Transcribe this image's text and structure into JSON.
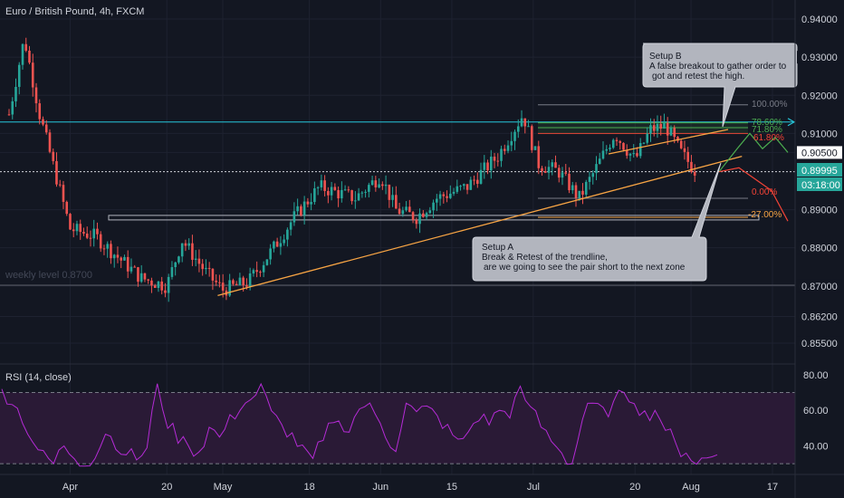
{
  "header": {
    "symbol_title": "Euro / British Pound, 4h, FXCM",
    "rsi_label": "RSI (14, close)"
  },
  "colors": {
    "background": "#131722",
    "grid": "#1e2230",
    "up": "#26a69a",
    "down": "#ef5350",
    "trendline": "#f7a444",
    "cyan_level": "#26c6da",
    "rsi_line": "#b52bd6",
    "rsi_fill": "#2a1a36",
    "projection_green": "#4caf50",
    "projection_red": "#f44336",
    "callout_bg": "#b2b5be"
  },
  "price_axis": {
    "ticks": [
      {
        "label": "0.94000",
        "value": 0.94
      },
      {
        "label": "0.93000",
        "value": 0.93
      },
      {
        "label": "0.92000",
        "value": 0.92
      },
      {
        "label": "0.91000",
        "value": 0.91
      },
      {
        "label": "0.90500",
        "value": 0.905
      },
      {
        "label": "0.89000",
        "value": 0.89
      },
      {
        "label": "0.88000",
        "value": 0.88
      },
      {
        "label": "0.87000",
        "value": 0.87
      },
      {
        "label": "0.86200",
        "value": 0.862
      },
      {
        "label": "0.85500",
        "value": 0.855
      }
    ],
    "current_price": "0.89995",
    "countdown": "03:18:00"
  },
  "rsi_axis": {
    "ticks": [
      {
        "label": "80.00",
        "value": 80
      },
      {
        "label": "60.00",
        "value": 60
      },
      {
        "label": "40.00",
        "value": 40
      }
    ],
    "upper_band": 70,
    "lower_band": 30
  },
  "time_axis": {
    "ticks": [
      "Apr",
      "20",
      "May",
      "18",
      "Jun",
      "15",
      "Jul",
      "20",
      "Aug",
      "17"
    ]
  },
  "annotations": {
    "weekly_level": "weekly level 0.8700",
    "setup_b": {
      "title": "Setup B",
      "line1": "A false breakout to gather order to",
      "line2": "got and retest the high."
    },
    "setup_a": {
      "title": "Setup A",
      "line1": "Break & Retest of the trendline,",
      "line2": "are we going to see the pair short to the next zone"
    },
    "fib_levels": [
      {
        "label": "100.00%",
        "color": "#787b86"
      },
      {
        "label": "78.60%",
        "color": "#4caf50"
      },
      {
        "label": "71.80%",
        "color": "#4caf50"
      },
      {
        "label": "61.80%",
        "color": "#f44336"
      },
      {
        "label": "0.00%",
        "color": "#787b86"
      },
      {
        "label": "-27.00%",
        "color": "#787b86"
      }
    ]
  },
  "chart_data": {
    "type": "candlestick",
    "title": "Euro / British Pound, 4h, FXCM",
    "x_ticks": [
      "Apr",
      "20",
      "May",
      "18",
      "Jun",
      "15",
      "Jul",
      "20",
      "Aug",
      "17"
    ],
    "ylim": [
      0.85,
      0.945
    ],
    "last_price": 0.89995,
    "horizontal_levels": [
      {
        "name": "weekly level",
        "value": 0.87
      },
      {
        "name": "cyan level",
        "value": 0.913
      },
      {
        "name": "zone",
        "value": 0.8875
      }
    ],
    "price_path": [
      {
        "x": "Mar 20",
        "close": 0.915
      },
      {
        "x": "Mar 23",
        "close": 0.935
      },
      {
        "x": "Mar 26",
        "close": 0.915
      },
      {
        "x": "Apr 1",
        "close": 0.885
      },
      {
        "x": "Apr 6",
        "close": 0.883
      },
      {
        "x": "Apr 10",
        "close": 0.878
      },
      {
        "x": "Apr 15",
        "close": 0.872
      },
      {
        "x": "Apr 20",
        "close": 0.87
      },
      {
        "x": "Apr 23",
        "close": 0.882
      },
      {
        "x": "Apr 28",
        "close": 0.873
      },
      {
        "x": "May 1",
        "close": 0.869
      },
      {
        "x": "May 6",
        "close": 0.871
      },
      {
        "x": "May 11",
        "close": 0.88
      },
      {
        "x": "May 15",
        "close": 0.888
      },
      {
        "x": "May 20",
        "close": 0.896
      },
      {
        "x": "May 27",
        "close": 0.893
      },
      {
        "x": "Jun 1",
        "close": 0.899
      },
      {
        "x": "Jun 4",
        "close": 0.89
      },
      {
        "x": "Jun 8",
        "close": 0.888
      },
      {
        "x": "Jun 12",
        "close": 0.893
      },
      {
        "x": "Jun 18",
        "close": 0.896
      },
      {
        "x": "Jun 24",
        "close": 0.904
      },
      {
        "x": "Jun 29",
        "close": 0.915
      },
      {
        "x": "Jul 2",
        "close": 0.902
      },
      {
        "x": "Jul 6",
        "close": 0.9
      },
      {
        "x": "Jul 10",
        "close": 0.893
      },
      {
        "x": "Jul 13",
        "close": 0.9
      },
      {
        "x": "Jul 17",
        "close": 0.91
      },
      {
        "x": "Jul 21",
        "close": 0.903
      },
      {
        "x": "Jul 24",
        "close": 0.911
      },
      {
        "x": "Jul 27",
        "close": 0.912
      },
      {
        "x": "Jul 30",
        "close": 0.905
      },
      {
        "x": "Aug 2",
        "close": 0.89995
      }
    ],
    "trendline": {
      "start": {
        "x": "Apr 30",
        "y": 0.8675
      },
      "end": {
        "x": "Aug 11",
        "y": 0.904
      }
    },
    "projections": {
      "setup_b_green": [
        0.89995,
        0.906,
        0.91,
        0.906,
        0.909,
        0.905
      ],
      "setup_a_red": [
        0.89995,
        0.901,
        0.898,
        0.895,
        0.887
      ]
    },
    "rsi": {
      "name": "RSI (14, close)",
      "ylim": [
        25,
        85
      ],
      "bands": [
        30,
        70
      ],
      "values": [
        72,
        65,
        55,
        42,
        35,
        30,
        40,
        34,
        31,
        33,
        48,
        41,
        35,
        33,
        38,
        75,
        52,
        44,
        40,
        37,
        50,
        45,
        55,
        62,
        66,
        73,
        58,
        52,
        46,
        38,
        33,
        42,
        55,
        48,
        57,
        63,
        58,
        46,
        39,
        64,
        58,
        61,
        57,
        50,
        42,
        48,
        56,
        53,
        60,
        58,
        71,
        62,
        51,
        44,
        36,
        30,
        55,
        64,
        59,
        63,
        70,
        66,
        58,
        60,
        50,
        40,
        36,
        31,
        33,
        35
      ]
    }
  }
}
